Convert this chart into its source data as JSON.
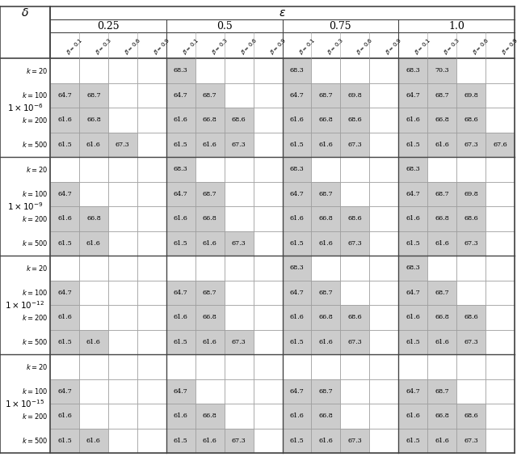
{
  "epsilon_labels": [
    "0.25",
    "0.5",
    "0.75",
    "1.0"
  ],
  "delta_exponents": [
    -6,
    -9,
    -12,
    -15
  ],
  "beta_labels": [
    "\\beta=0.1",
    "\\beta=0.3",
    "\\beta=0.6",
    "\\beta=0.9"
  ],
  "k_values": [
    20,
    100,
    200,
    500
  ],
  "cell_data": {
    "d0_e0": [
      [
        null,
        null,
        null,
        null
      ],
      [
        64.7,
        68.7,
        null,
        null
      ],
      [
        61.6,
        66.8,
        null,
        null
      ],
      [
        61.5,
        61.6,
        67.3,
        null
      ]
    ],
    "d0_e1": [
      [
        68.3,
        null,
        null,
        null
      ],
      [
        64.7,
        68.7,
        null,
        null
      ],
      [
        61.6,
        66.8,
        68.6,
        null
      ],
      [
        61.5,
        61.6,
        67.3,
        null
      ]
    ],
    "d0_e2": [
      [
        68.3,
        null,
        null,
        null
      ],
      [
        64.7,
        68.7,
        69.8,
        null
      ],
      [
        61.6,
        66.8,
        68.6,
        null
      ],
      [
        61.5,
        61.6,
        67.3,
        null
      ]
    ],
    "d0_e3": [
      [
        68.3,
        70.3,
        null,
        null
      ],
      [
        64.7,
        68.7,
        69.8,
        null
      ],
      [
        61.6,
        66.8,
        68.6,
        null
      ],
      [
        61.5,
        61.6,
        67.3,
        67.6
      ]
    ],
    "d1_e0": [
      [
        null,
        null,
        null,
        null
      ],
      [
        64.7,
        null,
        null,
        null
      ],
      [
        61.6,
        66.8,
        null,
        null
      ],
      [
        61.5,
        61.6,
        null,
        null
      ]
    ],
    "d1_e1": [
      [
        68.3,
        null,
        null,
        null
      ],
      [
        64.7,
        68.7,
        null,
        null
      ],
      [
        61.6,
        66.8,
        null,
        null
      ],
      [
        61.5,
        61.6,
        67.3,
        null
      ]
    ],
    "d1_e2": [
      [
        68.3,
        null,
        null,
        null
      ],
      [
        64.7,
        68.7,
        null,
        null
      ],
      [
        61.6,
        66.8,
        68.6,
        null
      ],
      [
        61.5,
        61.6,
        67.3,
        null
      ]
    ],
    "d1_e3": [
      [
        68.3,
        null,
        null,
        null
      ],
      [
        64.7,
        68.7,
        69.8,
        null
      ],
      [
        61.6,
        66.8,
        68.6,
        null
      ],
      [
        61.5,
        61.6,
        67.3,
        null
      ]
    ],
    "d2_e0": [
      [
        null,
        null,
        null,
        null
      ],
      [
        64.7,
        null,
        null,
        null
      ],
      [
        61.6,
        null,
        null,
        null
      ],
      [
        61.5,
        61.6,
        null,
        null
      ]
    ],
    "d2_e1": [
      [
        null,
        null,
        null,
        null
      ],
      [
        64.7,
        68.7,
        null,
        null
      ],
      [
        61.6,
        66.8,
        null,
        null
      ],
      [
        61.5,
        61.6,
        67.3,
        null
      ]
    ],
    "d2_e2": [
      [
        68.3,
        null,
        null,
        null
      ],
      [
        64.7,
        68.7,
        null,
        null
      ],
      [
        61.6,
        66.8,
        68.6,
        null
      ],
      [
        61.5,
        61.6,
        67.3,
        null
      ]
    ],
    "d2_e3": [
      [
        68.3,
        null,
        null,
        null
      ],
      [
        64.7,
        68.7,
        null,
        null
      ],
      [
        61.6,
        66.8,
        68.6,
        null
      ],
      [
        61.5,
        61.6,
        67.3,
        null
      ]
    ],
    "d3_e0": [
      [
        null,
        null,
        null,
        null
      ],
      [
        64.7,
        null,
        null,
        null
      ],
      [
        61.6,
        null,
        null,
        null
      ],
      [
        61.5,
        61.6,
        null,
        null
      ]
    ],
    "d3_e1": [
      [
        null,
        null,
        null,
        null
      ],
      [
        64.7,
        null,
        null,
        null
      ],
      [
        61.6,
        66.8,
        null,
        null
      ],
      [
        61.5,
        61.6,
        67.3,
        null
      ]
    ],
    "d3_e2": [
      [
        null,
        null,
        null,
        null
      ],
      [
        64.7,
        68.7,
        null,
        null
      ],
      [
        61.6,
        66.8,
        null,
        null
      ],
      [
        61.5,
        61.6,
        67.3,
        null
      ]
    ],
    "d3_e3": [
      [
        null,
        null,
        null,
        null
      ],
      [
        64.7,
        68.7,
        null,
        null
      ],
      [
        61.6,
        66.8,
        68.6,
        null
      ],
      [
        61.5,
        61.6,
        67.3,
        null
      ]
    ]
  },
  "light_gray": "#cccccc",
  "white": "#ffffff",
  "border_color": "#999999",
  "heavy_border_color": "#444444",
  "text_color": "#000000",
  "fig_width": 6.4,
  "fig_height": 5.65
}
